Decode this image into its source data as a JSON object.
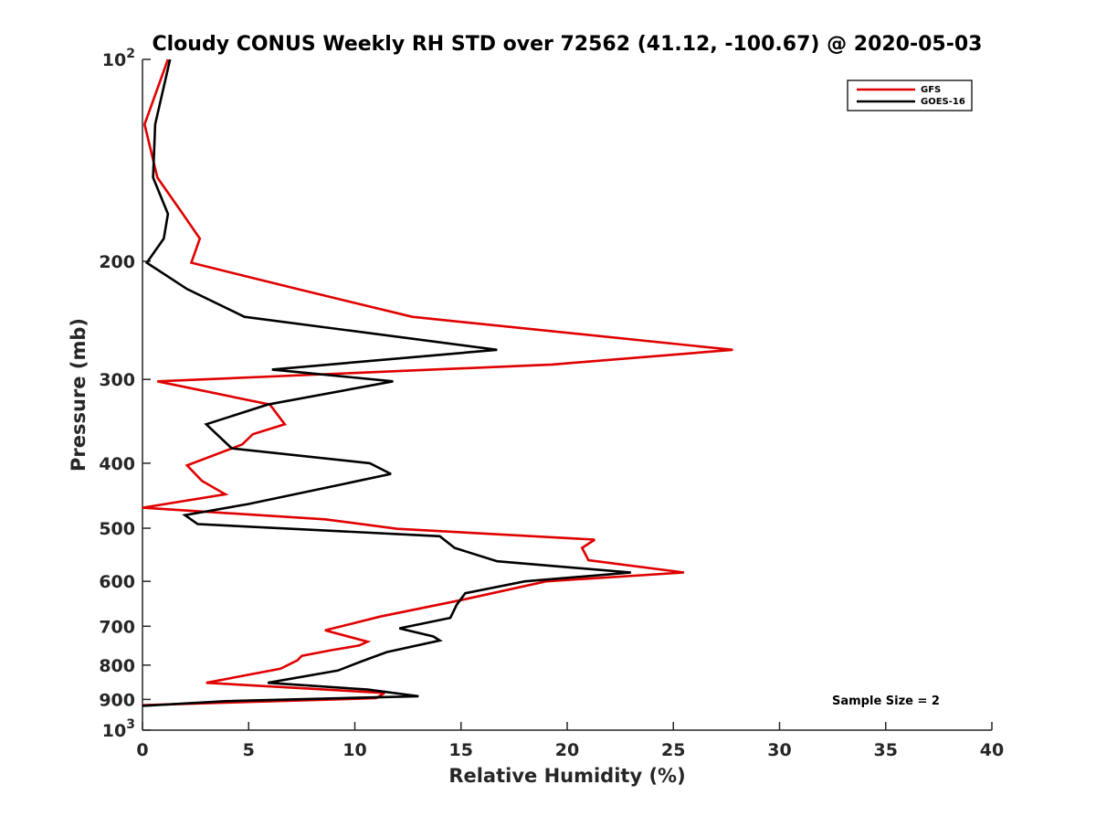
{
  "chart_data": {
    "type": "line",
    "title": "Cloudy CONUS Weekly RH STD over 72562 (41.12, -100.67) @ 2020-05-03",
    "xlabel": "Relative Humidity (%)",
    "ylabel": "Pressure (mb)",
    "xlim": [
      0,
      40
    ],
    "ylim": [
      100,
      1000
    ],
    "y_scale": "log",
    "y_reversed": true,
    "grid": false,
    "legend_position": "top-right",
    "x_ticks": [
      0,
      5,
      10,
      15,
      20,
      25,
      30,
      35,
      40
    ],
    "y_ticks": [
      {
        "value": 100,
        "base": "10",
        "exp": "2"
      },
      {
        "value": 200,
        "label": "200"
      },
      {
        "value": 300,
        "label": "300"
      },
      {
        "value": 400,
        "label": "400"
      },
      {
        "value": 500,
        "label": "500"
      },
      {
        "value": 600,
        "label": "600"
      },
      {
        "value": 700,
        "label": "700"
      },
      {
        "value": 800,
        "label": "800"
      },
      {
        "value": 900,
        "label": "900"
      },
      {
        "value": 1000,
        "base": "10",
        "exp": "3"
      }
    ],
    "series": [
      {
        "name": "GFS",
        "color": "#e00000",
        "points": [
          [
            1.2,
            100
          ],
          [
            0.1,
            125
          ],
          [
            0.7,
            150
          ],
          [
            1.9,
            170
          ],
          [
            2.7,
            185
          ],
          [
            2.3,
            201
          ],
          [
            7.3,
            220
          ],
          [
            12.7,
            242
          ],
          [
            27.8,
            271
          ],
          [
            19.3,
            285
          ],
          [
            0.7,
            302
          ],
          [
            6.0,
            327
          ],
          [
            6.7,
            350
          ],
          [
            5.2,
            362
          ],
          [
            4.7,
            375
          ],
          [
            2.1,
            403
          ],
          [
            2.8,
            425
          ],
          [
            3.9,
            445
          ],
          [
            0,
            466
          ],
          [
            8.6,
            485
          ],
          [
            12.0,
            501
          ],
          [
            21.3,
            520
          ],
          [
            20.7,
            535
          ],
          [
            21.0,
            558
          ],
          [
            25.5,
            582
          ],
          [
            19.0,
            600
          ],
          [
            15.0,
            640
          ],
          [
            11.2,
            677
          ],
          [
            8.6,
            710
          ],
          [
            10.6,
            738
          ],
          [
            10.2,
            748
          ],
          [
            8.9,
            760
          ],
          [
            7.5,
            775
          ],
          [
            7.3,
            787
          ],
          [
            6.5,
            810
          ],
          [
            3.0,
            850
          ],
          [
            11.4,
            880
          ],
          [
            11.0,
            896
          ],
          [
            0,
            918
          ]
        ]
      },
      {
        "name": "GOES-16",
        "color": "#000000",
        "points": [
          [
            1.3,
            100
          ],
          [
            0.6,
            125
          ],
          [
            0.5,
            150
          ],
          [
            1.2,
            170
          ],
          [
            1.0,
            185
          ],
          [
            0.2,
            201
          ],
          [
            2.1,
            220
          ],
          [
            4.8,
            242
          ],
          [
            16.7,
            271
          ],
          [
            6.1,
            290
          ],
          [
            11.8,
            302
          ],
          [
            5.9,
            327
          ],
          [
            3.0,
            350
          ],
          [
            4.2,
            380
          ],
          [
            10.7,
            400
          ],
          [
            11.7,
            415
          ],
          [
            9.4,
            430
          ],
          [
            5.0,
            460
          ],
          [
            2.0,
            478
          ],
          [
            2.6,
            493
          ],
          [
            14.0,
            514
          ],
          [
            14.7,
            535
          ],
          [
            16.7,
            560
          ],
          [
            23.0,
            582
          ],
          [
            18.0,
            600
          ],
          [
            15.2,
            625
          ],
          [
            14.8,
            650
          ],
          [
            14.5,
            680
          ],
          [
            12.1,
            705
          ],
          [
            13.7,
            725
          ],
          [
            14.0,
            735
          ],
          [
            11.5,
            765
          ],
          [
            10.3,
            790
          ],
          [
            9.2,
            815
          ],
          [
            5.9,
            850
          ],
          [
            10.6,
            870
          ],
          [
            13.0,
            890
          ],
          [
            4.0,
            905
          ],
          [
            0,
            920
          ]
        ]
      }
    ],
    "annotations": [
      {
        "text": "Sample Size = 2"
      }
    ]
  }
}
